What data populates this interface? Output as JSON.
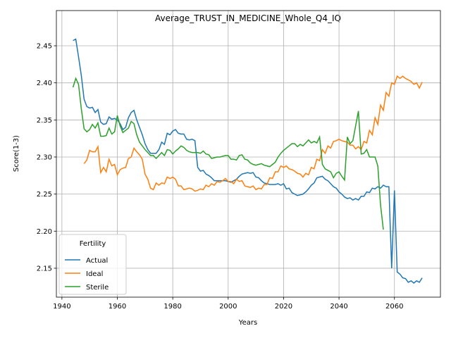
{
  "chart_data": {
    "type": "line",
    "title": "Average_TRUST_IN_MEDICINE_Whole_Q4_IQ",
    "xlabel": "Years",
    "ylabel": "Score(1-3)",
    "legend_title": "Fertility",
    "legend_loc": "lower left",
    "grid": true,
    "xlim": [
      1938,
      2076.6
    ],
    "ylim": [
      2.111,
      2.4975
    ],
    "xticks": [
      1940,
      1960,
      1980,
      2000,
      2020,
      2040,
      2060
    ],
    "yticks": [
      2.15,
      {
        "value": 2.2,
        "label": "2.20"
      },
      2.25,
      {
        "value": 2.3,
        "label": "2.30"
      },
      2.35,
      {
        "value": 2.4,
        "label": "2.40"
      },
      2.45
    ],
    "x": [
      1944,
      1945,
      1946,
      1947,
      1948,
      1949,
      1950,
      1951,
      1952,
      1953,
      1954,
      1955,
      1956,
      1957,
      1958,
      1959,
      1960,
      1961,
      1962,
      1963,
      1964,
      1965,
      1966,
      1967,
      1968,
      1969,
      1970,
      1971,
      1972,
      1973,
      1974,
      1975,
      1976,
      1977,
      1978,
      1979,
      1980,
      1981,
      1982,
      1983,
      1984,
      1985,
      1986,
      1987,
      1988,
      1989,
      1990,
      1991,
      1992,
      1993,
      1994,
      1995,
      1996,
      1997,
      1998,
      1999,
      2000,
      2001,
      2002,
      2003,
      2004,
      2005,
      2006,
      2007,
      2008,
      2009,
      2010,
      2011,
      2012,
      2013,
      2014,
      2015,
      2016,
      2017,
      2018,
      2019,
      2020,
      2021,
      2022,
      2023,
      2024,
      2025,
      2026,
      2027,
      2028,
      2029,
      2030,
      2031,
      2032,
      2033,
      2034,
      2035,
      2036,
      2037,
      2038,
      2039,
      2040,
      2041,
      2042,
      2043,
      2044,
      2045,
      2046,
      2047,
      2048,
      2049,
      2050,
      2051,
      2052,
      2053,
      2054,
      2055,
      2056,
      2057,
      2058,
      2059,
      2060,
      2061,
      2062,
      2063,
      2064,
      2065,
      2066,
      2067,
      2068,
      2069,
      2070
    ],
    "series": [
      {
        "name": "Actual",
        "color": "#1f77b4",
        "values": [
          2.457,
          2.459,
          2.435,
          2.41,
          2.378,
          2.368,
          2.366,
          2.367,
          2.36,
          2.364,
          2.347,
          2.344,
          2.345,
          2.354,
          2.351,
          2.352,
          2.35,
          2.345,
          2.337,
          2.34,
          2.353,
          2.36,
          2.363,
          2.35,
          2.34,
          2.33,
          2.318,
          2.31,
          2.305,
          2.305,
          2.305,
          2.31,
          2.32,
          2.317,
          2.332,
          2.33,
          2.335,
          2.337,
          2.332,
          2.331,
          2.331,
          2.324,
          2.323,
          2.324,
          2.322,
          2.286,
          2.281,
          2.282,
          2.277,
          2.275,
          2.272,
          2.268,
          2.268,
          2.268,
          2.268,
          2.268,
          2.267,
          2.266,
          2.268,
          2.27,
          2.274,
          2.277,
          2.278,
          2.279,
          2.278,
          2.279,
          2.273,
          2.272,
          2.268,
          2.265,
          2.264,
          2.263,
          2.263,
          2.263,
          2.264,
          2.262,
          2.264,
          2.257,
          2.258,
          2.252,
          2.25,
          2.248,
          2.249,
          2.25,
          2.253,
          2.257,
          2.262,
          2.265,
          2.272,
          2.273,
          2.274,
          2.27,
          2.268,
          2.264,
          2.26,
          2.258,
          2.253,
          2.25,
          2.246,
          2.244,
          2.245,
          2.242,
          2.244,
          2.242,
          2.247,
          2.247,
          2.253,
          2.252,
          2.258,
          2.257,
          2.26,
          2.258,
          2.262,
          2.26,
          2.26,
          2.15,
          2.255,
          2.145,
          2.142,
          2.137,
          2.136,
          2.131,
          2.133,
          2.13,
          2.133,
          2.131,
          2.137
        ]
      },
      {
        "name": "Ideal",
        "color": "#ff7f0e",
        "values": [
          null,
          null,
          null,
          null,
          2.291,
          2.296,
          2.309,
          2.307,
          2.307,
          2.314,
          2.279,
          2.286,
          2.28,
          2.297,
          2.288,
          2.29,
          2.276,
          2.283,
          2.285,
          2.286,
          2.298,
          2.3,
          2.312,
          2.307,
          2.303,
          2.297,
          2.277,
          2.27,
          2.258,
          2.256,
          2.265,
          2.262,
          2.265,
          2.264,
          2.273,
          2.271,
          2.273,
          2.27,
          2.261,
          2.261,
          2.256,
          2.257,
          2.258,
          2.257,
          2.254,
          2.255,
          2.257,
          2.256,
          2.262,
          2.26,
          2.264,
          2.262,
          2.267,
          2.266,
          2.268,
          2.271,
          2.267,
          2.267,
          2.264,
          2.27,
          2.267,
          2.268,
          2.261,
          2.26,
          2.259,
          2.261,
          2.256,
          2.258,
          2.257,
          2.263,
          2.263,
          2.272,
          2.271,
          2.28,
          2.28,
          2.288,
          2.286,
          2.288,
          2.284,
          2.283,
          2.281,
          2.278,
          2.277,
          2.273,
          2.278,
          2.276,
          2.286,
          2.284,
          2.297,
          2.295,
          2.31,
          2.305,
          2.315,
          2.312,
          2.321,
          2.322,
          2.324,
          2.322,
          2.321,
          2.32,
          2.316,
          2.316,
          2.311,
          2.314,
          2.31,
          2.321,
          2.319,
          2.336,
          2.33,
          2.353,
          2.344,
          2.37,
          2.363,
          2.387,
          2.382,
          2.4,
          2.398,
          2.409,
          2.406,
          2.409,
          2.406,
          2.404,
          2.402,
          2.398,
          2.4,
          2.393,
          2.401
        ]
      },
      {
        "name": "Sterile",
        "color": "#2ca02c",
        "values": [
          2.394,
          2.406,
          2.398,
          2.365,
          2.338,
          2.334,
          2.337,
          2.344,
          2.339,
          2.346,
          2.328,
          2.328,
          2.329,
          2.339,
          2.331,
          2.334,
          2.356,
          2.342,
          2.333,
          2.336,
          2.339,
          2.348,
          2.345,
          2.33,
          2.32,
          2.315,
          2.31,
          2.306,
          2.302,
          2.302,
          2.298,
          2.302,
          2.306,
          2.302,
          2.31,
          2.309,
          2.304,
          2.308,
          2.311,
          2.315,
          2.313,
          2.309,
          2.307,
          2.306,
          2.306,
          2.306,
          2.305,
          2.308,
          2.304,
          2.303,
          2.298,
          2.299,
          2.3,
          2.3,
          2.301,
          2.302,
          2.302,
          2.297,
          2.297,
          2.296,
          2.302,
          2.303,
          2.297,
          2.296,
          2.292,
          2.29,
          2.289,
          2.29,
          2.291,
          2.289,
          2.288,
          2.287,
          2.29,
          2.293,
          2.3,
          2.305,
          2.309,
          2.312,
          2.315,
          2.318,
          2.318,
          2.314,
          2.317,
          2.315,
          2.319,
          2.323,
          2.319,
          2.321,
          2.319,
          2.327,
          2.29,
          2.284,
          2.282,
          2.28,
          2.272,
          2.278,
          2.28,
          2.274,
          2.269,
          2.327,
          2.318,
          2.322,
          2.342,
          2.362,
          2.304,
          2.305,
          2.31,
          2.3,
          2.3,
          2.3,
          2.288,
          2.235,
          2.202,
          null,
          null,
          null,
          null,
          null,
          null,
          null,
          null,
          null,
          null,
          null,
          null,
          null,
          null
        ]
      }
    ]
  }
}
